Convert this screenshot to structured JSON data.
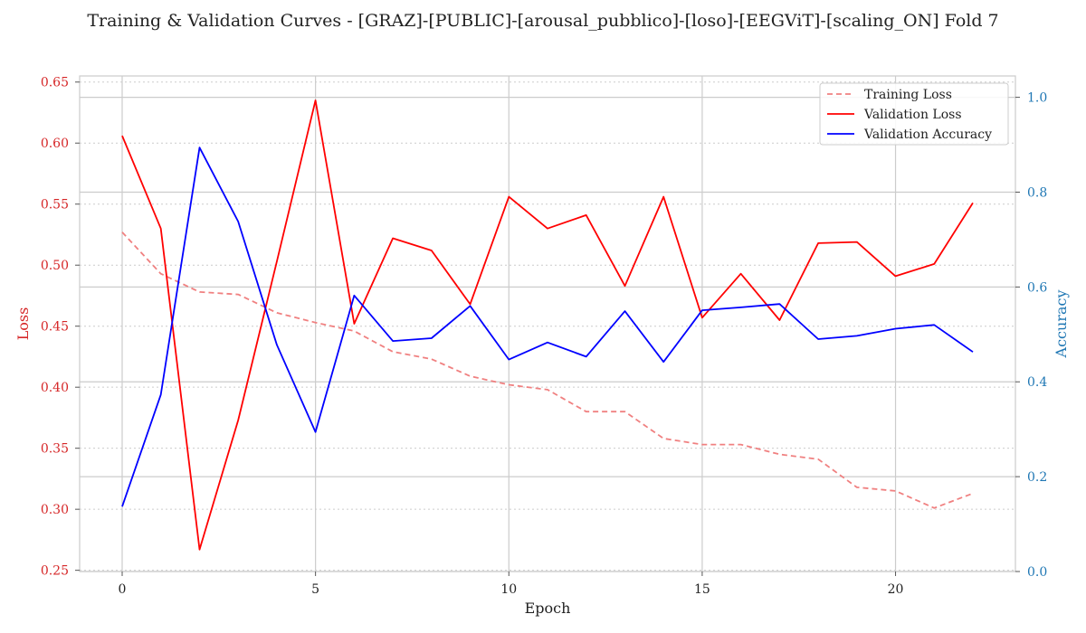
{
  "chart_data": {
    "type": "line",
    "title": "Training & Validation Curves - [GRAZ]-[PUBLIC]-[arousal_pubblico]-[loso]-[EEGViT]-[scaling_ON] Fold 7",
    "xlabel": "Epoch",
    "ylabel_left": "Loss",
    "ylabel_right": "Accuracy",
    "x": [
      0,
      1,
      2,
      3,
      4,
      5,
      6,
      7,
      8,
      9,
      10,
      11,
      12,
      13,
      14,
      15,
      16,
      17,
      18,
      19,
      20,
      21,
      22
    ],
    "xlim": [
      -1.1,
      23.1
    ],
    "xticks": [
      0,
      5,
      10,
      15,
      20
    ],
    "ylim_left": [
      0.249,
      0.655
    ],
    "yticks_left": [
      0.25,
      0.3,
      0.35,
      0.4,
      0.45,
      0.5,
      0.55,
      0.6,
      0.65
    ],
    "ylim_right": [
      0.0,
      1.045
    ],
    "yticks_right": [
      0.0,
      0.2,
      0.4,
      0.6,
      0.8,
      1.0
    ],
    "grid": true,
    "legend_position": "top-right",
    "series": [
      {
        "name": "Training Loss",
        "axis": "left",
        "style": "dashed",
        "color": "#f08080",
        "values": [
          0.527,
          0.493,
          0.478,
          0.476,
          0.461,
          0.453,
          0.446,
          0.429,
          0.423,
          0.409,
          0.402,
          0.398,
          0.38,
          0.38,
          0.358,
          0.353,
          0.353,
          0.345,
          0.341,
          0.318,
          0.315,
          0.301,
          0.313
        ]
      },
      {
        "name": "Validation Loss",
        "axis": "left",
        "style": "solid",
        "color": "#ff0000",
        "values": [
          0.606,
          0.53,
          0.267,
          0.373,
          0.503,
          0.635,
          0.452,
          0.522,
          0.512,
          0.468,
          0.556,
          0.53,
          0.541,
          0.483,
          0.556,
          0.457,
          0.493,
          0.455,
          0.518,
          0.519,
          0.491,
          0.501,
          0.551
        ]
      },
      {
        "name": "Validation Accuracy",
        "axis": "right",
        "style": "solid",
        "color": "#0000ff",
        "values": [
          0.137,
          0.373,
          0.894,
          0.738,
          0.478,
          0.294,
          0.582,
          0.486,
          0.492,
          0.56,
          0.447,
          0.483,
          0.453,
          0.549,
          0.442,
          0.551,
          0.557,
          0.564,
          0.49,
          0.497,
          0.512,
          0.52,
          0.463
        ]
      }
    ]
  },
  "colors": {
    "left_axis": "#d62728",
    "right_axis": "#1f77b4",
    "grid": "#cccccc",
    "frame": "#cccccc"
  }
}
